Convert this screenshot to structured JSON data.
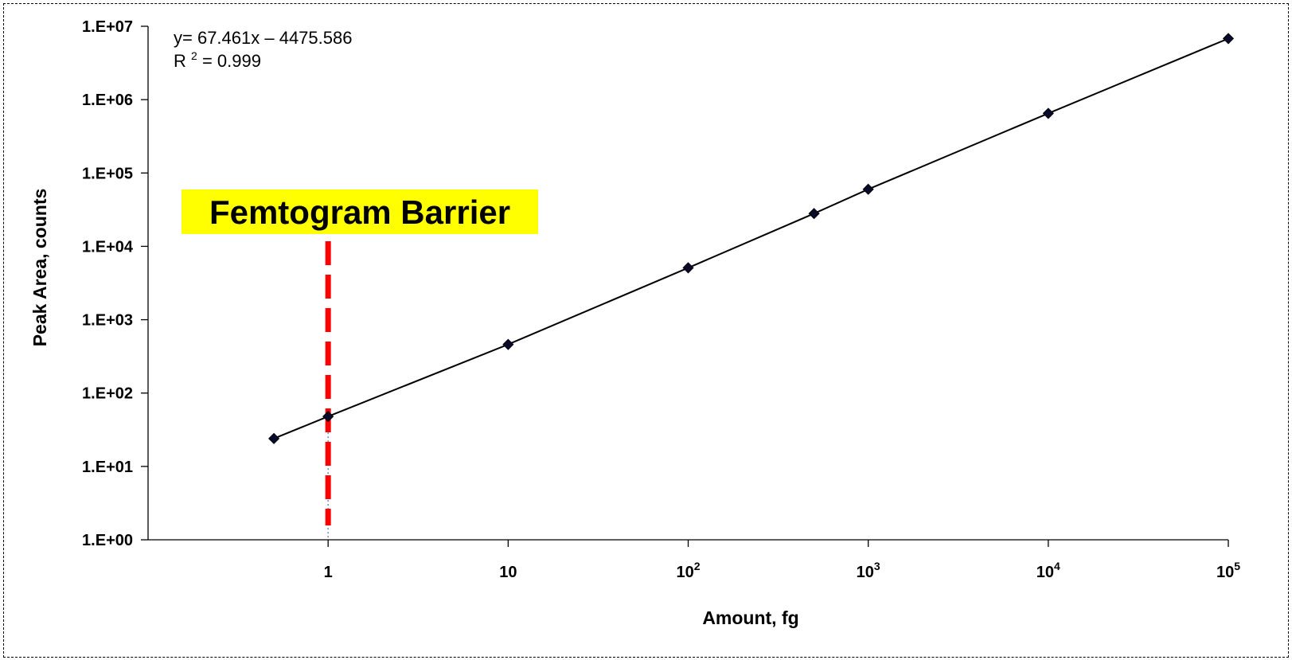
{
  "chart_data": {
    "type": "scatter",
    "x_scale": "log",
    "y_scale": "log",
    "xlabel": "Amount, fg",
    "ylabel": "Peak Area, counts",
    "xlim": [
      0.1,
      100000
    ],
    "ylim": [
      1,
      10000000
    ],
    "x_ticks": [
      {
        "value": 1,
        "base": "1",
        "exp": ""
      },
      {
        "value": 10,
        "base": "10",
        "exp": ""
      },
      {
        "value": 100,
        "base": "10",
        "exp": "2"
      },
      {
        "value": 1000,
        "base": "10",
        "exp": "3"
      },
      {
        "value": 10000,
        "base": "10",
        "exp": "4"
      },
      {
        "value": 100000,
        "base": "10",
        "exp": "5"
      }
    ],
    "y_ticks": [
      {
        "value": 1,
        "label": "1.E+00"
      },
      {
        "value": 10,
        "label": "1.E+01"
      },
      {
        "value": 100,
        "label": "1.E+02"
      },
      {
        "value": 1000,
        "label": "1.E+03"
      },
      {
        "value": 10000,
        "label": "1.E+04"
      },
      {
        "value": 100000,
        "label": "1.E+05"
      },
      {
        "value": 1000000,
        "label": "1.E+06"
      },
      {
        "value": 10000000,
        "label": "1.E+07"
      }
    ],
    "series": [
      {
        "x": [
          0.5,
          1,
          10,
          100,
          500,
          1000,
          10000,
          100000
        ],
        "y": [
          24,
          48,
          460,
          5100,
          28000,
          60000,
          650000,
          6800000
        ],
        "marker": "diamond",
        "color": "#0a0a2a",
        "trendline": true
      }
    ],
    "equation": {
      "line1": "y= 67.461x – 4475.586",
      "r2_prefix": "R",
      "r2_sup": "2",
      "r2_suffix": " = 0.999"
    },
    "annotation": {
      "text": "Femtogram Barrier",
      "x_value": 1,
      "box_color": "#ffff00",
      "line_color": "#ff0000"
    },
    "grid": false,
    "legend": "none"
  }
}
